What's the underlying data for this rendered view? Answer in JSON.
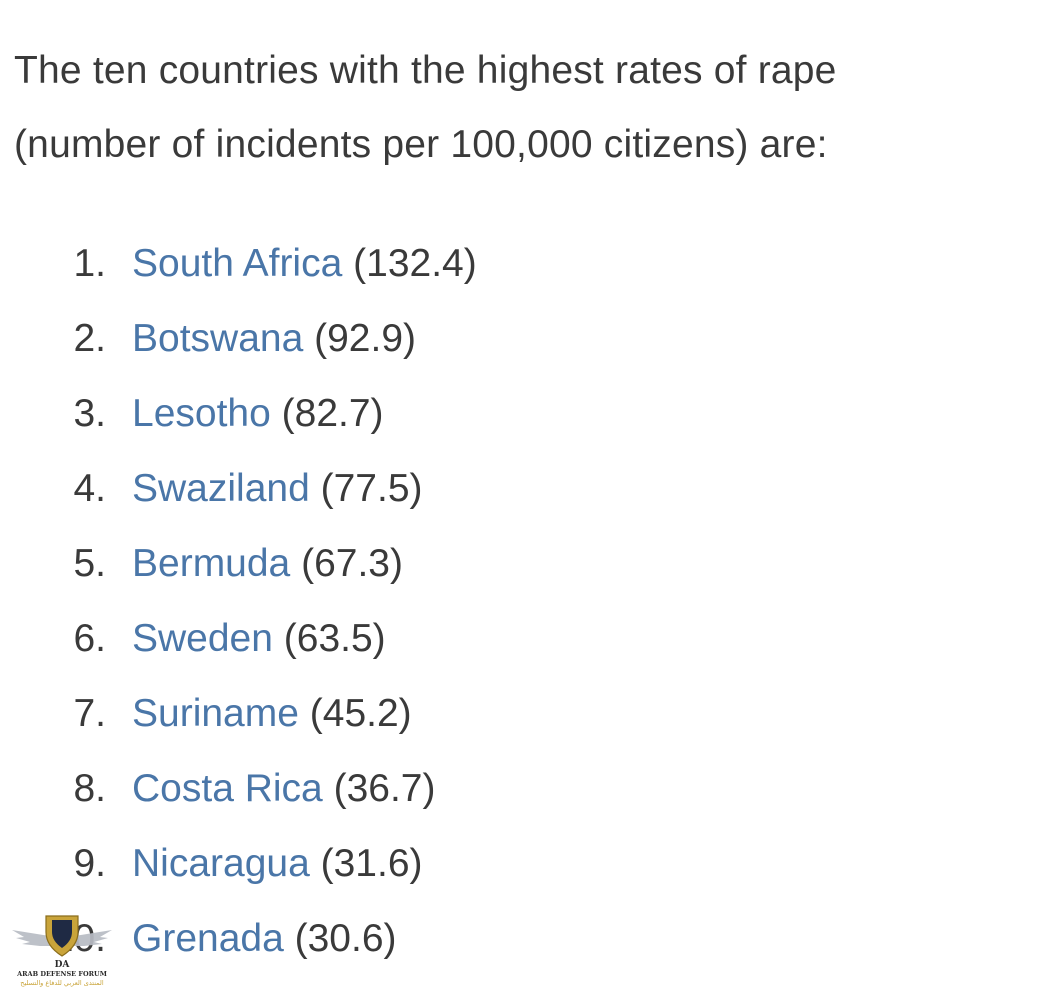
{
  "intro": {
    "line1": "The ten countries with the highest rates of rape",
    "line2": "(number of incidents per 100,000 citizens) are:"
  },
  "items": [
    {
      "number": "1.",
      "country": "South Africa",
      "rate": "(132.4)"
    },
    {
      "number": "2.",
      "country": "Botswana",
      "rate": "(92.9)"
    },
    {
      "number": "3.",
      "country": "Lesotho",
      "rate": "(82.7)"
    },
    {
      "number": "4.",
      "country": "Swaziland",
      "rate": "(77.5)"
    },
    {
      "number": "5.",
      "country": "Bermuda",
      "rate": "(67.3)"
    },
    {
      "number": "6.",
      "country": "Sweden",
      "rate": "(63.5)"
    },
    {
      "number": "7.",
      "country": "Suriname",
      "rate": "(45.2)"
    },
    {
      "number": "8.",
      "country": "Costa Rica",
      "rate": "(36.7)"
    },
    {
      "number": "9.",
      "country": "Nicaragua",
      "rate": "(31.6)"
    },
    {
      "number": "10.",
      "country": "Grenada",
      "rate": "(30.6)"
    }
  ],
  "watermark": {
    "monogram": "DA",
    "title": "ARAB DEFENSE FORUM",
    "subtitle": "المنتدى العربي للدفاع والتسليح"
  },
  "colors": {
    "text": "#3a3a3a",
    "link": "#4a76a8",
    "watermark_gold": "#c9a43a"
  }
}
